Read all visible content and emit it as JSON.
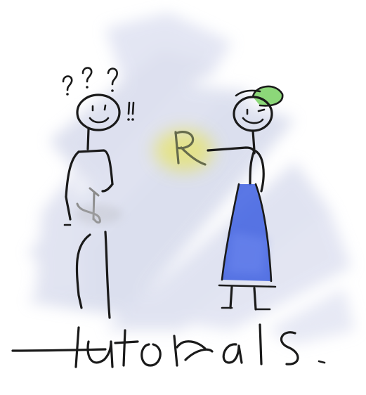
{
  "caption": "tutorials",
  "palette": {
    "background": "#ffffff",
    "wash": "#c5cbe3",
    "ink": "#1a1a1a",
    "dress": "#3d5fe0",
    "cap": "#7fd36a",
    "highlight": "#e6e36a"
  },
  "characters": [
    {
      "name": "confused-stick-figure",
      "marks": [
        "?",
        "?",
        "?",
        "!!"
      ]
    },
    {
      "name": "teaching-stick-figure",
      "marks": [
        "R"
      ]
    }
  ]
}
